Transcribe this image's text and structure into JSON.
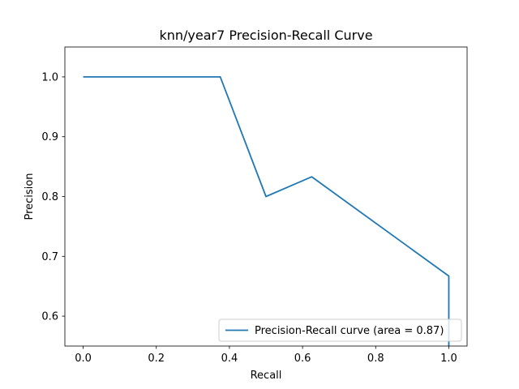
{
  "chart_data": {
    "type": "line",
    "title": "knn/year7 Precision-Recall Curve",
    "xlabel": "Recall",
    "ylabel": "Precision",
    "xlim": [
      -0.05,
      1.05
    ],
    "ylim": [
      0.55,
      1.05
    ],
    "xticks": [
      0.0,
      0.2,
      0.4,
      0.6,
      0.8,
      1.0
    ],
    "xtick_labels": [
      "0.0",
      "0.2",
      "0.4",
      "0.6",
      "0.8",
      "1.0"
    ],
    "yticks": [
      0.6,
      0.7,
      0.8,
      0.9,
      1.0
    ],
    "ytick_labels": [
      "0.6",
      "0.7",
      "0.8",
      "0.9",
      "1.0"
    ],
    "grid": false,
    "legend_position": "lower-right",
    "series": [
      {
        "name": "Precision-Recall curve (area = 0.87)",
        "color": "#1f77b4",
        "x": [
          0.0,
          0.375,
          0.375,
          0.5,
          0.625,
          1.0,
          1.0
        ],
        "y": [
          1.0,
          1.0,
          1.0,
          0.8,
          0.833,
          0.667,
          0.53
        ]
      }
    ]
  }
}
